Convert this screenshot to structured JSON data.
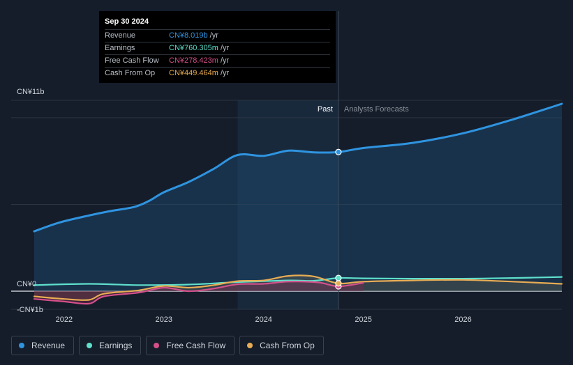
{
  "chart_data": {
    "type": "line",
    "y_axis": {
      "top_label": "CN¥11b",
      "zero_label": "CN¥0",
      "neg_label": "-CN¥1b",
      "ylim": [
        -1,
        11
      ]
    },
    "x_ticks": [
      "2022",
      "2023",
      "2024",
      "2025",
      "2026"
    ],
    "periods": {
      "past_label": "Past",
      "forecast_label": "Analysts Forecasts"
    },
    "x_range": [
      2021.7,
      2026.99
    ],
    "highlight_start": 2023.74,
    "divider": 2024.75,
    "series": [
      {
        "name": "Revenue",
        "color": "#2f94e0",
        "points": [
          [
            2021.7,
            3.45
          ],
          [
            2021.95,
            3.95
          ],
          [
            2022.2,
            4.3
          ],
          [
            2022.45,
            4.6
          ],
          [
            2022.7,
            4.85
          ],
          [
            2022.85,
            5.2
          ],
          [
            2023.0,
            5.7
          ],
          [
            2023.25,
            6.3
          ],
          [
            2023.5,
            7.05
          ],
          [
            2023.74,
            7.85
          ],
          [
            2024.0,
            7.8
          ],
          [
            2024.25,
            8.1
          ],
          [
            2024.5,
            8.0
          ],
          [
            2024.75,
            8.02
          ],
          [
            2025.0,
            8.25
          ],
          [
            2025.5,
            8.55
          ],
          [
            2026.0,
            9.1
          ],
          [
            2026.5,
            9.9
          ],
          [
            2026.99,
            10.8
          ]
        ]
      },
      {
        "name": "Earnings",
        "color": "#5fe0cc",
        "points": [
          [
            2021.7,
            0.35
          ],
          [
            2022.25,
            0.42
          ],
          [
            2022.75,
            0.35
          ],
          [
            2023.25,
            0.38
          ],
          [
            2023.74,
            0.52
          ],
          [
            2024.25,
            0.62
          ],
          [
            2024.5,
            0.6
          ],
          [
            2024.75,
            0.76
          ],
          [
            2025.0,
            0.74
          ],
          [
            2025.5,
            0.72
          ],
          [
            2026.0,
            0.72
          ],
          [
            2026.5,
            0.76
          ],
          [
            2026.99,
            0.82
          ]
        ]
      },
      {
        "name": "Free Cash Flow",
        "color": "#d4508a",
        "points": [
          [
            2021.7,
            -0.45
          ],
          [
            2022.0,
            -0.6
          ],
          [
            2022.25,
            -0.72
          ],
          [
            2022.4,
            -0.3
          ],
          [
            2022.75,
            -0.08
          ],
          [
            2023.0,
            0.2
          ],
          [
            2023.25,
            0.0
          ],
          [
            2023.5,
            0.15
          ],
          [
            2023.74,
            0.4
          ],
          [
            2024.0,
            0.42
          ],
          [
            2024.25,
            0.55
          ],
          [
            2024.55,
            0.5
          ],
          [
            2024.75,
            0.28
          ],
          [
            2025.0,
            0.48
          ]
        ]
      },
      {
        "name": "Cash From Op",
        "color": "#e8ac54",
        "points": [
          [
            2021.7,
            -0.3
          ],
          [
            2022.0,
            -0.45
          ],
          [
            2022.25,
            -0.5
          ],
          [
            2022.4,
            -0.15
          ],
          [
            2022.75,
            0.05
          ],
          [
            2023.0,
            0.3
          ],
          [
            2023.25,
            0.2
          ],
          [
            2023.5,
            0.35
          ],
          [
            2023.74,
            0.58
          ],
          [
            2024.0,
            0.62
          ],
          [
            2024.25,
            0.88
          ],
          [
            2024.5,
            0.85
          ],
          [
            2024.75,
            0.45
          ],
          [
            2025.0,
            0.55
          ],
          [
            2025.5,
            0.62
          ],
          [
            2026.0,
            0.65
          ],
          [
            2026.5,
            0.55
          ],
          [
            2026.99,
            0.42
          ]
        ]
      }
    ]
  },
  "tooltip": {
    "date": "Sep 30 2024",
    "unit": "/yr",
    "rows": [
      {
        "label": "Revenue",
        "value": "CN¥8.019b",
        "color": "#2f94e0"
      },
      {
        "label": "Earnings",
        "value": "CN¥760.305m",
        "color": "#5fe0cc"
      },
      {
        "label": "Free Cash Flow",
        "value": "CN¥278.423m",
        "color": "#d4508a"
      },
      {
        "label": "Cash From Op",
        "value": "CN¥449.464m",
        "color": "#e8ac54"
      }
    ]
  },
  "legend": [
    {
      "label": "Revenue",
      "color": "#2f94e0"
    },
    {
      "label": "Earnings",
      "color": "#5fe0cc"
    },
    {
      "label": "Free Cash Flow",
      "color": "#d4508a"
    },
    {
      "label": "Cash From Op",
      "color": "#e8ac54"
    }
  ]
}
